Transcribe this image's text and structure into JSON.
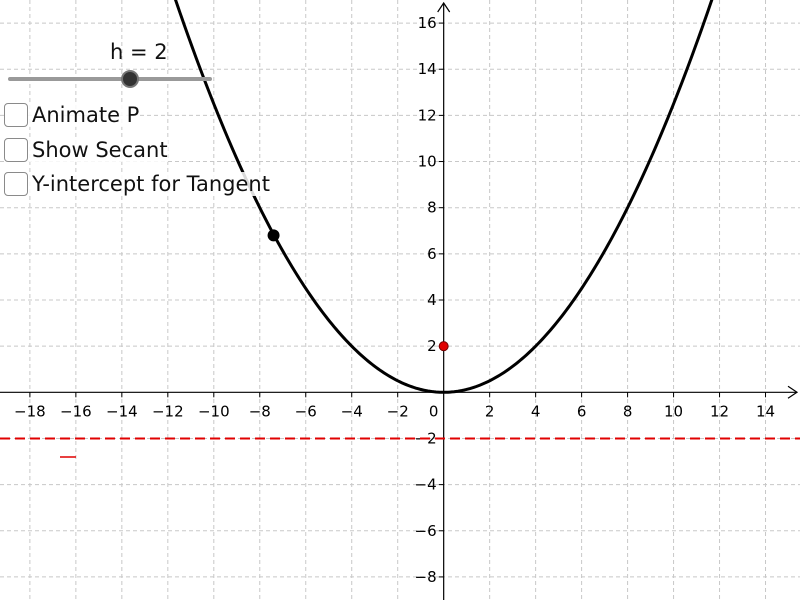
{
  "slider": {
    "name": "h",
    "value": 2,
    "label": "h = 2",
    "min": -10,
    "max": 5
  },
  "checkboxes": [
    {
      "label": "Animate P",
      "checked": false
    },
    {
      "label": "Show Secant",
      "checked": false
    },
    {
      "label": "Y-intercept for Tangent",
      "checked": false
    }
  ],
  "chart_data": {
    "type": "line",
    "title": "",
    "xlabel": "",
    "ylabel": "",
    "xlim": [
      -19.3,
      15.5
    ],
    "ylim": [
      -9,
      17
    ],
    "grid": true,
    "x_ticks": [
      -18,
      -16,
      -14,
      -12,
      -10,
      -8,
      -6,
      -4,
      -2,
      0,
      2,
      4,
      6,
      8,
      10,
      12,
      14
    ],
    "y_ticks": [
      -8,
      -6,
      -4,
      -2,
      2,
      4,
      6,
      8,
      10,
      12,
      14,
      16
    ],
    "curve": {
      "function": "x^2/8",
      "color": "#000000"
    },
    "points": [
      {
        "x": -7.4,
        "y": 6.8,
        "color": "#000000"
      },
      {
        "x": 0,
        "y": 2,
        "color": "#e00000"
      }
    ],
    "lines": [
      {
        "y": -2,
        "style": "dashed",
        "color": "#e00000"
      }
    ]
  },
  "colors": {
    "grid": "#c8c8c8",
    "axis": "#000000",
    "accent_red": "#e00000",
    "slider_track": "#999999"
  }
}
